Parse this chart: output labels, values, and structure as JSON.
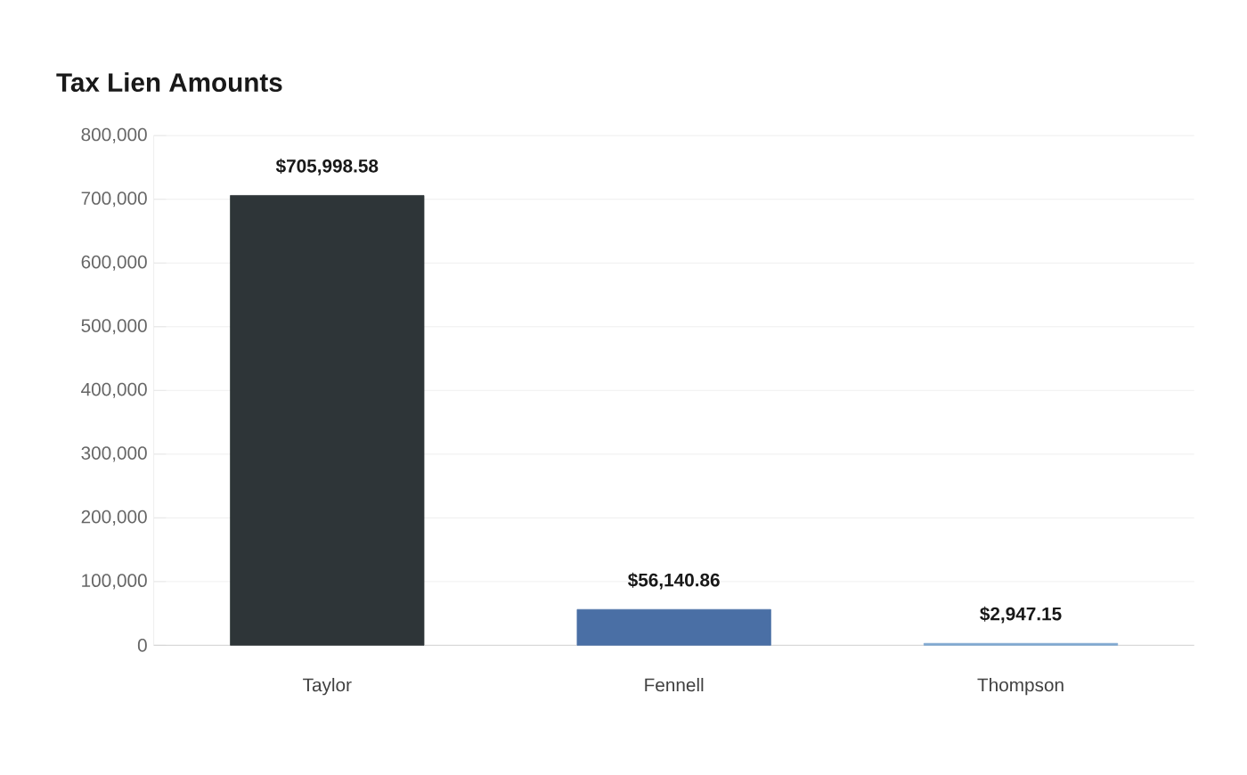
{
  "chart_data": {
    "type": "bar",
    "title": "Tax Lien Amounts",
    "categories": [
      "Taylor",
      "Fennell",
      "Thompson"
    ],
    "values": [
      705998.58,
      56140.86,
      2947.15
    ],
    "colors": [
      "#2e3538",
      "#4a6fa5",
      "#7fa8d0"
    ],
    "value_labels": [
      "$705,998.58",
      "$56,140.86",
      "$2,947.15"
    ],
    "ylim": [
      0,
      800000
    ],
    "yticks": [
      0,
      {
        "value": 100000,
        "label": "100,000"
      },
      {
        "value": 200000,
        "label": "200,000"
      },
      {
        "value": 300000,
        "label": "300,000"
      },
      {
        "value": 400000,
        "label": "400,000"
      },
      {
        "value": 500000,
        "label": "500,000"
      },
      {
        "value": 600000,
        "label": "600,000"
      },
      {
        "value": 700000,
        "label": "700,000"
      },
      {
        "value": 800000,
        "label": "800,000"
      }
    ],
    "grid": "y"
  }
}
